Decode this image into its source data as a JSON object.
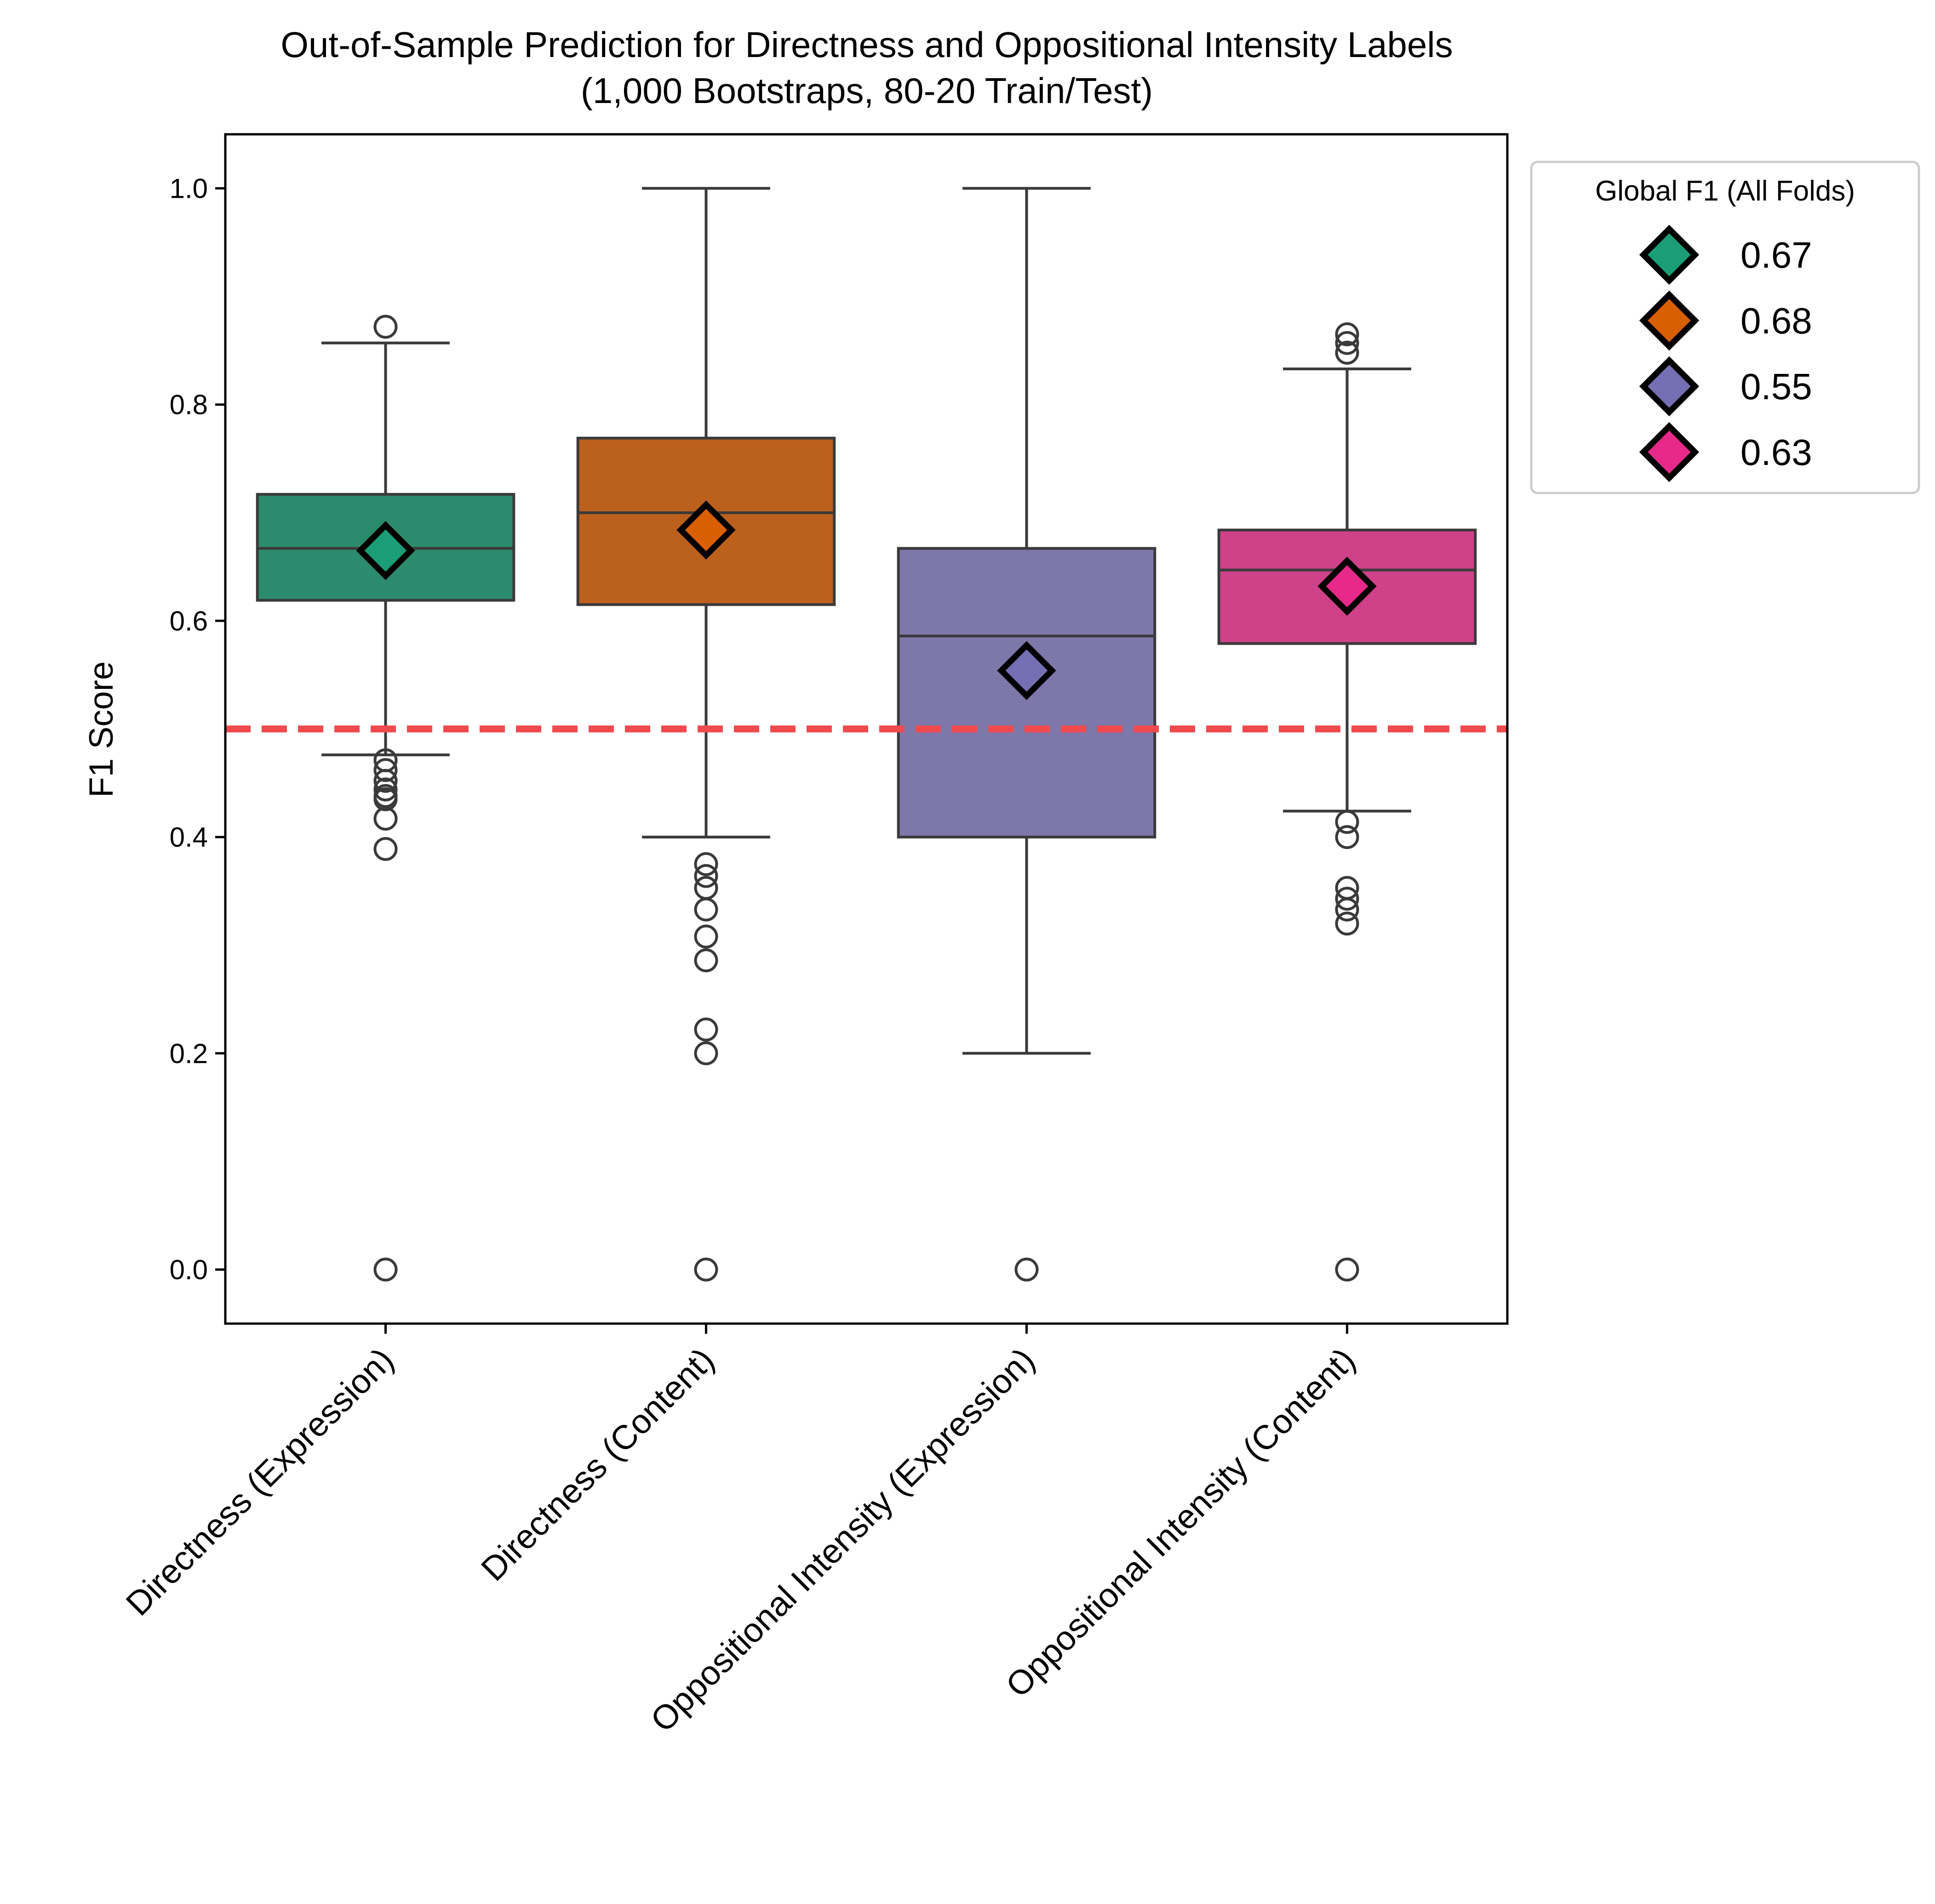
{
  "chart_data": {
    "type": "box",
    "title": [
      "Out-of-Sample Prediction for Directness and Oppositional Intensity Labels",
      "(1,000 Bootstraps, 80-20 Train/Test)"
    ],
    "xlabel": "",
    "ylabel": "F1 Score",
    "ylim": [
      -0.05,
      1.05
    ],
    "yticks": [
      0.0,
      0.2,
      0.4,
      0.6,
      0.8,
      1.0
    ],
    "ytick_labels": [
      "0.0",
      "0.2",
      "0.4",
      "0.6",
      "0.8",
      "1.0"
    ],
    "grid": false,
    "reference_line": {
      "y": 0.5,
      "style": "dashed",
      "color": "#f04a4f"
    },
    "categories": [
      "Directness (Expression)",
      "Directness (Content)",
      "Oppositional Intensity (Expression)",
      "Oppositional Intensity (Content)"
    ],
    "boxes": [
      {
        "category": "Directness (Expression)",
        "color": "#2b8c6d",
        "whisker_low": 0.476,
        "q1": 0.619,
        "median": 0.667,
        "q3": 0.717,
        "whisker_high": 0.857,
        "mean": 0.665,
        "outliers": [
          0.872,
          0.471,
          0.462,
          0.452,
          0.444,
          0.438,
          0.435,
          0.417,
          0.389,
          0.0
        ]
      },
      {
        "category": "Directness (Content)",
        "color": "#bc601e",
        "whisker_low": 0.4,
        "q1": 0.615,
        "median": 0.7,
        "q3": 0.769,
        "whisker_high": 1.0,
        "mean": 0.684,
        "outliers": [
          0.375,
          0.364,
          0.353,
          0.333,
          0.308,
          0.286,
          0.222,
          0.2,
          0.0
        ]
      },
      {
        "category": "Oppositional Intensity (Expression)",
        "color": "#7e78aa",
        "whisker_low": 0.2,
        "q1": 0.4,
        "median": 0.586,
        "q3": 0.667,
        "whisker_high": 1.0,
        "mean": 0.554,
        "outliers": [
          0.0
        ]
      },
      {
        "category": "Oppositional Intensity (Content)",
        "color": "#cf428a",
        "whisker_low": 0.424,
        "q1": 0.579,
        "median": 0.647,
        "q3": 0.684,
        "whisker_high": 0.833,
        "mean": 0.632,
        "outliers": [
          0.865,
          0.857,
          0.848,
          0.414,
          0.4,
          0.353,
          0.343,
          0.333,
          0.32,
          0.0
        ]
      }
    ],
    "legend": {
      "title": "Global F1 (All Folds)",
      "placement": "outside upper right",
      "entries": [
        {
          "label": "0.67",
          "color": "#1b9e77"
        },
        {
          "label": "0.68",
          "color": "#d95f02"
        },
        {
          "label": "0.55",
          "color": "#7570b3"
        },
        {
          "label": "0.63",
          "color": "#e7298a"
        }
      ]
    }
  }
}
